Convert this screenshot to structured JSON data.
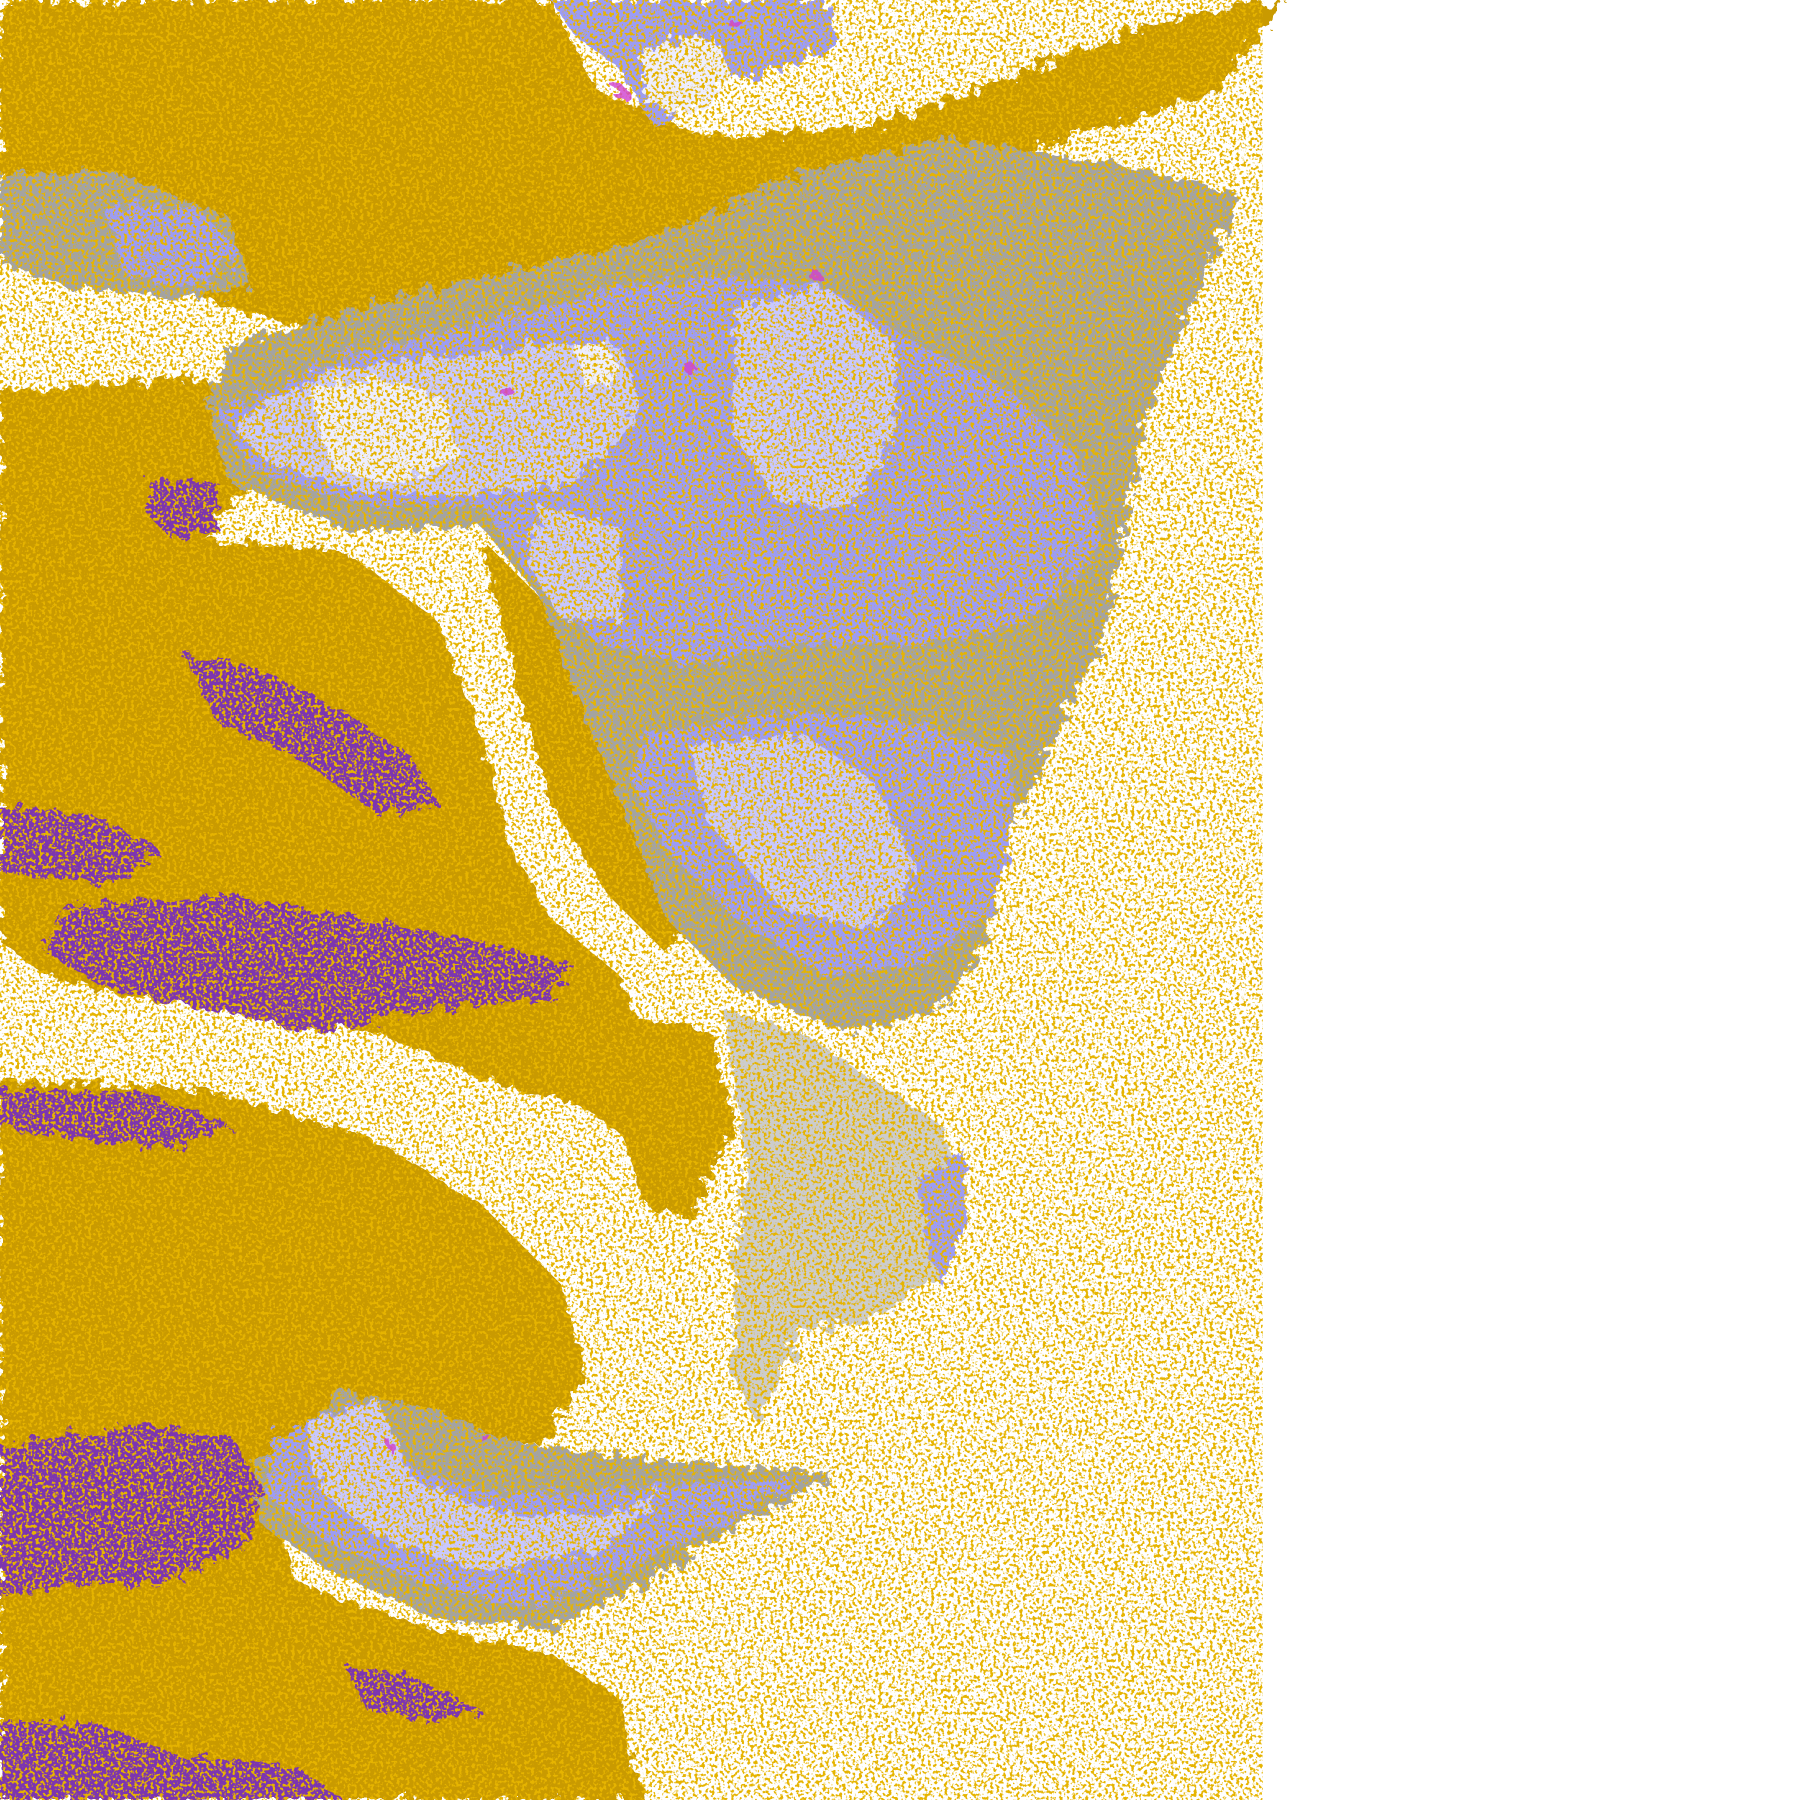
{
  "map": {
    "kind": "satellite cloud-type classification",
    "background": "#ffffff",
    "colors": {
      "low_cloud_gold": "#c99a06",
      "low_cloud_bright": "#e0b000",
      "purple_cloud": "#7b35b0",
      "gray_cloud": "#a3a3a3",
      "dark_gray_cloud": "#8c8c8c",
      "high_cloud_blue": "#9c9cf5",
      "high_cloud_pale": "#c8c8ff",
      "high_cloud_whitish": "#eeeeff",
      "magenta_specks": "#d040d0"
    }
  }
}
